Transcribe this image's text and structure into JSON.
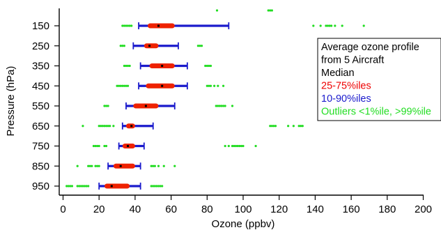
{
  "chart_data": {
    "type": "boxplot",
    "xlabel": "Ozone (ppbv)",
    "ylabel": "Pressure (hPa)",
    "xlim": [
      0,
      200
    ],
    "xticks": [
      0,
      20,
      40,
      60,
      80,
      100,
      120,
      140,
      160,
      180,
      200
    ],
    "categories": [
      "150",
      "250",
      "350",
      "450",
      "550",
      "650",
      "750",
      "850",
      "950"
    ],
    "legend": {
      "lines": [
        {
          "text": "Average ozone profile",
          "color": "#000000"
        },
        {
          "text": "from 5 Aircraft",
          "color": "#000000"
        },
        {
          "text": "Median",
          "color": "#000000"
        },
        {
          "text": "25-75%iles",
          "color": "#ee0000"
        },
        {
          "text": "10-90%iles",
          "color": "#1a1acc"
        },
        {
          "text": "Outliers <1%ile, >99%ile",
          "color": "#22dd22"
        }
      ]
    },
    "colors": {
      "iqr": "#ee2200",
      "whisker": "#1a1acc",
      "outlier": "#22dd22",
      "median": "#000000"
    },
    "extra_outliers_above": [
      85.5,
      114,
      115,
      116
    ],
    "levels": [
      {
        "pressure": 150,
        "p10": 42,
        "p25": 47,
        "median": 53,
        "p75": 62,
        "p90": 92,
        "outliers": [
          33,
          34,
          35,
          36,
          37,
          38,
          139,
          143,
          146,
          147,
          148,
          149,
          151,
          155,
          167
        ]
      },
      {
        "pressure": 250,
        "p10": 39,
        "p25": 45,
        "median": 48,
        "p75": 53,
        "p90": 64,
        "outliers": [
          32,
          33,
          34,
          75,
          76,
          77
        ]
      },
      {
        "pressure": 350,
        "p10": 43,
        "p25": 48,
        "median": 55,
        "p75": 62,
        "p90": 69,
        "outliers": [
          34,
          35,
          36,
          37,
          79,
          80,
          81,
          82
        ]
      },
      {
        "pressure": 450,
        "p10": 42,
        "p25": 46,
        "median": 55,
        "p75": 62,
        "p90": 69,
        "outliers": [
          30,
          31,
          32,
          33,
          34,
          35,
          36,
          80,
          81,
          82,
          84,
          86,
          89
        ]
      },
      {
        "pressure": 550,
        "p10": 35,
        "p25": 39,
        "median": 46,
        "p75": 53,
        "p90": 62,
        "outliers": [
          23,
          24,
          25,
          85,
          86,
          87,
          88,
          89,
          90,
          94
        ]
      },
      {
        "pressure": 650,
        "p10": 33,
        "p25": 35,
        "median": 38,
        "p75": 40,
        "p90": 50,
        "outliers": [
          11,
          20,
          21,
          22,
          23,
          24,
          25,
          26,
          28,
          115,
          116,
          117,
          118,
          125,
          128,
          131,
          132,
          133
        ]
      },
      {
        "pressure": 750,
        "p10": 31,
        "p25": 33,
        "median": 36,
        "p75": 40,
        "p90": 45,
        "outliers": [
          17,
          18,
          19,
          20,
          23,
          24,
          90,
          92,
          94,
          95,
          96,
          97,
          98,
          99,
          100,
          107
        ]
      },
      {
        "pressure": 850,
        "p10": 25,
        "p25": 28,
        "median": 32,
        "p75": 40,
        "p90": 43,
        "outliers": [
          8,
          14,
          15,
          16,
          18,
          19,
          20,
          49,
          50,
          51,
          53,
          56,
          62
        ]
      },
      {
        "pressure": 950,
        "p10": 20,
        "p25": 23,
        "median": 27,
        "p75": 37,
        "p90": 43,
        "outliers": [
          2,
          3,
          4,
          5,
          8,
          9,
          10,
          11,
          12,
          13,
          14,
          49,
          50,
          51,
          52,
          53,
          54,
          55
        ]
      }
    ]
  }
}
